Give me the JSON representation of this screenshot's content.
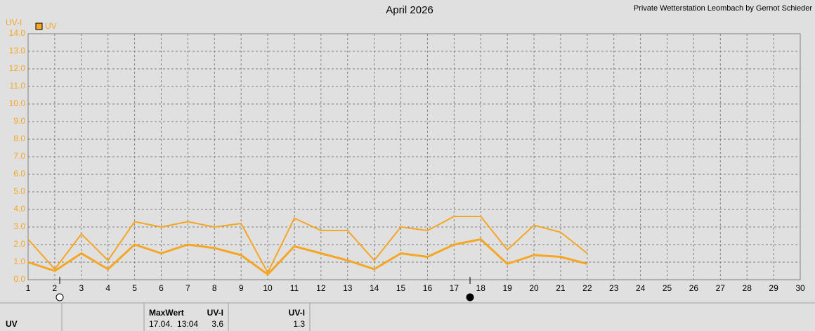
{
  "chart_data": {
    "type": "line",
    "title": "April 2026",
    "subtitle": "Private Wetterstation Leombach by Gernot Schieder",
    "y_label": "UV-I",
    "x": [
      1,
      2,
      3,
      4,
      5,
      6,
      7,
      8,
      9,
      10,
      11,
      12,
      13,
      14,
      15,
      16,
      17,
      18,
      19,
      20,
      21,
      22
    ],
    "series": [
      {
        "name": "UV",
        "color": "#f5a623",
        "values": [
          2.3,
          0.6,
          2.6,
          1.1,
          3.3,
          3.0,
          3.3,
          3.0,
          3.2,
          0.4,
          3.5,
          2.8,
          2.8,
          1.1,
          3.0,
          2.8,
          3.6,
          3.6,
          1.7,
          3.1,
          2.7,
          1.5
        ]
      },
      {
        "color": "#f5a623",
        "values": [
          1.0,
          0.5,
          1.5,
          0.6,
          2.0,
          1.5,
          2.0,
          1.8,
          1.4,
          0.3,
          1.9,
          1.5,
          1.1,
          0.6,
          1.5,
          1.3,
          2.0,
          2.3,
          0.9,
          1.4,
          1.3,
          0.9
        ]
      }
    ],
    "xlim": [
      1,
      30
    ],
    "xticks": [
      1,
      2,
      3,
      4,
      5,
      6,
      7,
      8,
      9,
      10,
      11,
      12,
      13,
      14,
      15,
      16,
      17,
      18,
      19,
      20,
      21,
      22,
      23,
      24,
      25,
      26,
      27,
      28,
      29,
      30
    ],
    "ylim": [
      0,
      14
    ],
    "yticks": [
      {
        "value": 0,
        "label": "0.0"
      },
      {
        "value": 1,
        "label": "1.0"
      },
      {
        "value": 2,
        "label": "2.0"
      },
      {
        "value": 3,
        "label": "3.0"
      },
      {
        "value": 4,
        "label": "4.0"
      },
      {
        "value": 5,
        "label": "5.0"
      },
      {
        "value": 6,
        "label": "6.0"
      },
      {
        "value": 7,
        "label": "7.0"
      },
      {
        "value": 8,
        "label": "8.0"
      },
      {
        "value": 9,
        "label": "9.0"
      },
      {
        "value": 10,
        "label": "10.0"
      },
      {
        "value": 11,
        "label": "11.0"
      },
      {
        "value": 12,
        "label": "12.0"
      },
      {
        "value": 13,
        "label": "13.0"
      },
      {
        "value": 14,
        "label": "14.0"
      }
    ],
    "grid": true
  },
  "footer": {
    "label": "UV",
    "max_header": "MaxWert",
    "max_unit": "UV-I",
    "max_time": "17.04.  13:04",
    "max_value": 3.6,
    "mean_unit": "UV-I",
    "mean_value": 1.3
  }
}
